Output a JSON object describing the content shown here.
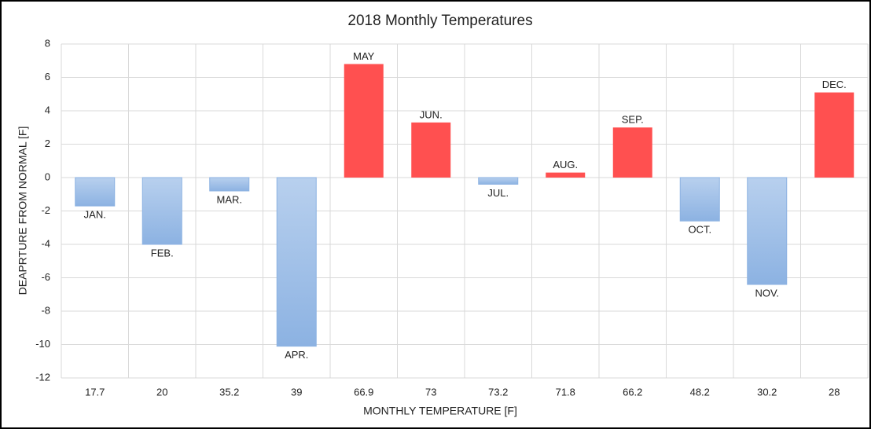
{
  "chart_data": {
    "type": "bar",
    "title": "2018 Monthly Temperatures",
    "x_label": "MONTHLY TEMPERATURE  [F]",
    "y_label": "DEAPRTURE  FROM NORMAL [F]",
    "categories": [
      "17.7",
      "20",
      "35.2",
      "39",
      "66.9",
      "73",
      "73.2",
      "71.8",
      "66.2",
      "48.2",
      "30.2",
      "28"
    ],
    "values": [
      -1.7,
      -4.0,
      -0.8,
      -10.1,
      6.8,
      3.3,
      -0.4,
      0.3,
      3.0,
      -2.6,
      -6.4,
      5.1
    ],
    "point_labels": [
      "JAN.",
      "FEB.",
      "MAR.",
      "APR.",
      "MAY",
      "JUN.",
      "JUL.",
      "AUG.",
      "SEP.",
      "OCT.",
      "NOV.",
      "DEC."
    ],
    "positive_color": "#ff5050",
    "negative_gradient": [
      "#b8d0ee",
      "#8cb2e2"
    ],
    "ylim": [
      -12,
      8
    ],
    "yticks": [
      -12,
      -10,
      -8,
      -6,
      -4,
      -2,
      0,
      2,
      4,
      6,
      8
    ],
    "grid": true
  }
}
